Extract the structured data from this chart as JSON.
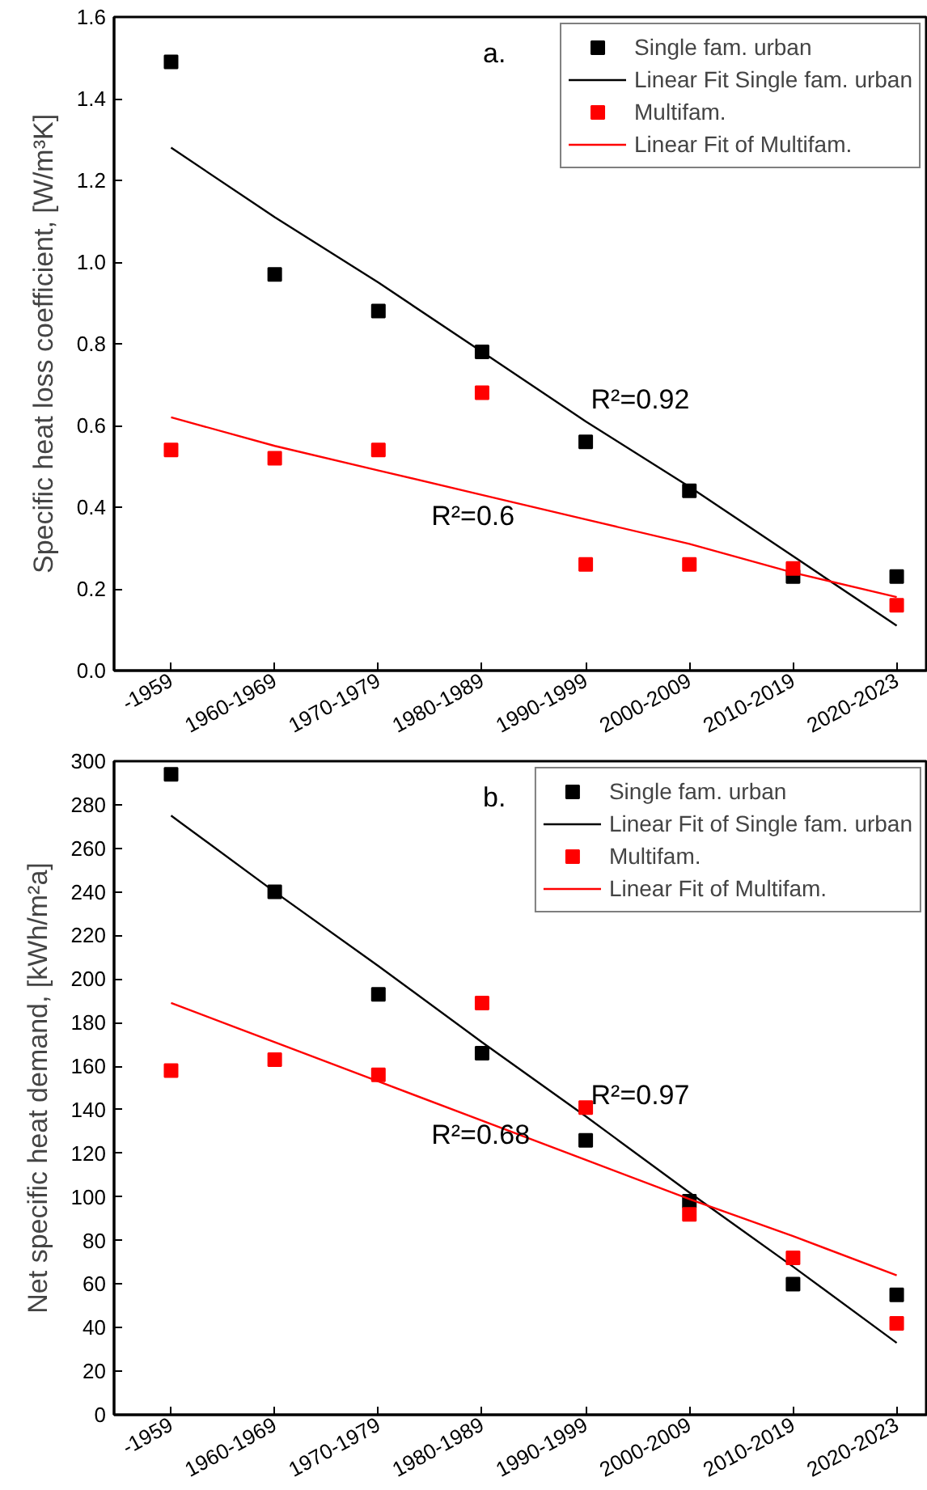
{
  "chart_data": [
    {
      "type": "scatter",
      "title": "a.",
      "ylabel": "Specific heat loss coefficient, [W/m³K]",
      "categories": [
        "-1959",
        "1960-1969",
        "1970-1979",
        "1980-1989",
        "1990-1999",
        "2000-2009",
        "2010-2019",
        "2020-2023"
      ],
      "ylim": [
        0,
        1.6
      ],
      "yticks": [
        {
          "value": 0,
          "label": "0.0"
        },
        0.2,
        0.4,
        0.6,
        0.8,
        {
          "value": 1,
          "label": "1.0"
        },
        1.2,
        1.4,
        1.6
      ],
      "legend": "top right",
      "grid": false,
      "series": [
        {
          "name": "Single fam. urban",
          "marker": "square",
          "color": "#000000",
          "values": [
            1.49,
            0.97,
            0.88,
            0.78,
            0.56,
            0.44,
            0.23,
            0.23
          ]
        },
        {
          "name": "Linear Fit Single fam. urban",
          "type": "line",
          "color": "#000000",
          "values": [
            1.28,
            1.11,
            0.95,
            0.78,
            0.61,
            0.45,
            0.28,
            0.11
          ]
        },
        {
          "name": "Multifam.",
          "marker": "square",
          "color": "#ff0000",
          "values": [
            0.54,
            0.52,
            0.54,
            0.68,
            0.26,
            0.26,
            0.25,
            0.16
          ]
        },
        {
          "name": "Linear Fit of Multifam.",
          "type": "line",
          "color": "#ff0000",
          "values": [
            0.62,
            0.55,
            0.49,
            0.43,
            0.37,
            0.31,
            0.24,
            0.18
          ]
        }
      ],
      "annotations": [
        "R²=0.92",
        "R²=0.6"
      ]
    },
    {
      "type": "scatter",
      "title": "b.",
      "ylabel": "Net specific heat demand, [kWh/m²a]",
      "categories": [
        "-1959",
        "1960-1969",
        "1970-1979",
        "1980-1989",
        "1990-1999",
        "2000-2009",
        "2010-2019",
        "2020-2023"
      ],
      "ylim": [
        0,
        300
      ],
      "yticks": [
        0,
        20,
        40,
        60,
        80,
        100,
        120,
        140,
        160,
        180,
        200,
        220,
        240,
        260,
        280,
        300
      ],
      "legend": "top right",
      "grid": false,
      "series": [
        {
          "name": "Single fam. urban",
          "marker": "square",
          "color": "#000000",
          "values": [
            294,
            240,
            193,
            166,
            126,
            98,
            60,
            55
          ]
        },
        {
          "name": "Linear Fit of Single fam. urban",
          "type": "line",
          "color": "#000000",
          "values": [
            275,
            240,
            206,
            171,
            137,
            102,
            68,
            33
          ]
        },
        {
          "name": "Multifam.",
          "marker": "square",
          "color": "#ff0000",
          "values": [
            158,
            163,
            156,
            189,
            141,
            92,
            72,
            42
          ]
        },
        {
          "name": "Linear Fit of Multifam.",
          "type": "line",
          "color": "#ff0000",
          "values": [
            189,
            171,
            153,
            135,
            117,
            99,
            82,
            64
          ]
        }
      ],
      "annotations": [
        "R²=0.97",
        "R²=0.68"
      ]
    }
  ]
}
